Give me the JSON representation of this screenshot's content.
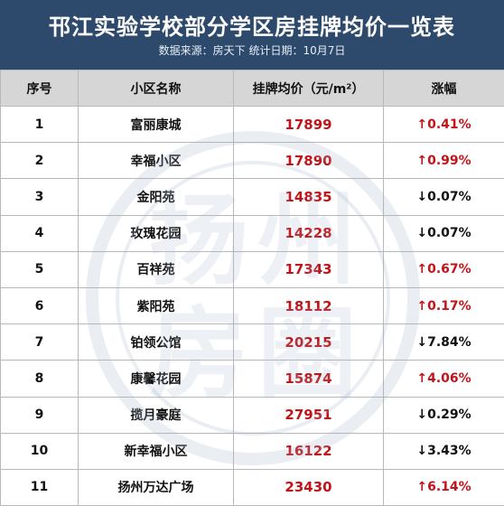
{
  "title": "邗江实验学校部分学区房挂牌均价一览表",
  "subtitle": "数据来源：房天下  统计日期：10月7日",
  "watermark_text": "扬州房圈",
  "colors": {
    "header_bg": "#2d4a6d",
    "up": "#c0141a",
    "down": "#111111",
    "head_row": "#d6d6d6"
  },
  "columns": [
    "序号",
    "小区名称",
    "挂牌均价（元/m²）",
    "涨幅"
  ],
  "rows": [
    {
      "no": "1",
      "name": "富丽康城",
      "price": "17899",
      "change": "↑0.41%",
      "dir": "up"
    },
    {
      "no": "2",
      "name": "幸福小区",
      "price": "17890",
      "change": "↑0.99%",
      "dir": "up"
    },
    {
      "no": "3",
      "name": "金阳苑",
      "price": "14835",
      "change": "↓0.07%",
      "dir": "down"
    },
    {
      "no": "4",
      "name": "玫瑰花园",
      "price": "14228",
      "change": "↓0.07%",
      "dir": "down"
    },
    {
      "no": "5",
      "name": "百祥苑",
      "price": "17343",
      "change": "↑0.67%",
      "dir": "up"
    },
    {
      "no": "6",
      "name": "紫阳苑",
      "price": "18112",
      "change": "↑0.17%",
      "dir": "up"
    },
    {
      "no": "7",
      "name": "铂领公馆",
      "price": "20215",
      "change": "↓7.84%",
      "dir": "down"
    },
    {
      "no": "8",
      "name": "康馨花园",
      "price": "15874",
      "change": "↑4.06%",
      "dir": "up"
    },
    {
      "no": "9",
      "name": "揽月豪庭",
      "price": "27951",
      "change": "↓0.29%",
      "dir": "down"
    },
    {
      "no": "10",
      "name": "新幸福小区",
      "price": "16122",
      "change": "↓3.43%",
      "dir": "down"
    },
    {
      "no": "11",
      "name": "扬州万达广场",
      "price": "23430",
      "change": "↑6.14%",
      "dir": "up"
    }
  ]
}
